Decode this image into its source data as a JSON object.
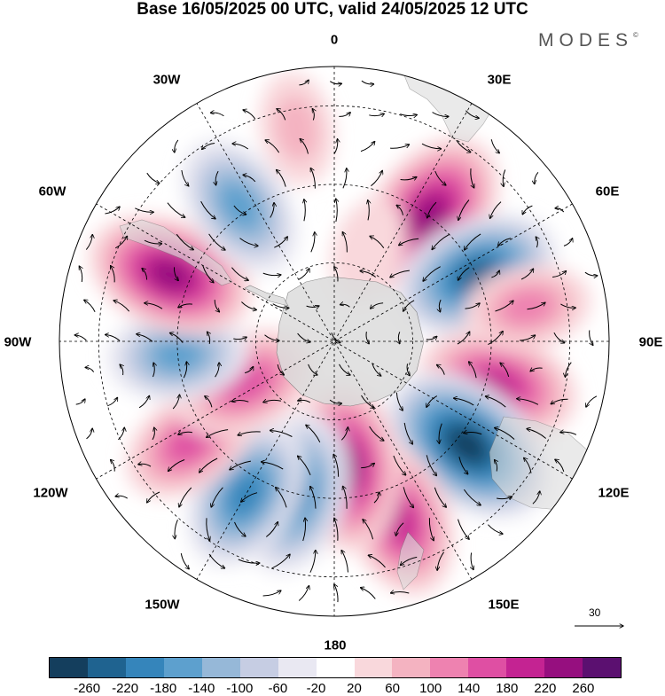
{
  "title": "Base 16/05/2025 00 UTC, valid 24/05/2025 12 UTC",
  "brand": "MODES",
  "brand_mark": "©",
  "longitude_labels": {
    "n0": "0",
    "n30e": "30E",
    "n60e": "60E",
    "n90e": "90E",
    "n120e": "120E",
    "n150e": "150E",
    "n180": "180",
    "n150w": "150W",
    "n120w": "120W",
    "n90w": "90W",
    "n60w": "60W",
    "n30w": "30W"
  },
  "vector_reference": "30",
  "colorbar": {
    "colors": [
      "#143e5d",
      "#1f6390",
      "#3585bb",
      "#5da0ce",
      "#96b8d8",
      "#c6cde3",
      "#e9e8f2",
      "#ffffff",
      "#f9d8dc",
      "#f4b3c1",
      "#ee82b0",
      "#df4fa3",
      "#c42392",
      "#960f7f",
      "#5b1070"
    ],
    "tick_labels": [
      "-260",
      "-220",
      "-180",
      "-140",
      "-100",
      "-60",
      "-20",
      "20",
      "60",
      "100",
      "140",
      "180",
      "220",
      "260"
    ]
  },
  "anomaly_centers": [
    {
      "lon": 37,
      "lat": -50,
      "value": 240
    },
    {
      "lon": 65,
      "lat": -50,
      "value": -220
    },
    {
      "lon": 105,
      "lat": -47,
      "value": 200
    },
    {
      "lon": 128,
      "lat": -47,
      "value": -260
    },
    {
      "lon": 160,
      "lat": -42,
      "value": 190
    },
    {
      "lon": 175,
      "lat": -58,
      "value": 220
    },
    {
      "lon": -165,
      "lat": -50,
      "value": -200
    },
    {
      "lon": -150,
      "lat": -45,
      "value": -180
    },
    {
      "lon": -125,
      "lat": -45,
      "value": 140
    },
    {
      "lon": -115,
      "lat": -65,
      "value": 160
    },
    {
      "lon": -95,
      "lat": -50,
      "value": -140
    },
    {
      "lon": -68,
      "lat": -45,
      "value": 220
    },
    {
      "lon": -35,
      "lat": -48,
      "value": -160
    },
    {
      "lon": -10,
      "lat": -35,
      "value": 60
    },
    {
      "lon": 20,
      "lat": -65,
      "value": 40
    },
    {
      "lon": 80,
      "lat": -40,
      "value": 100
    }
  ]
}
